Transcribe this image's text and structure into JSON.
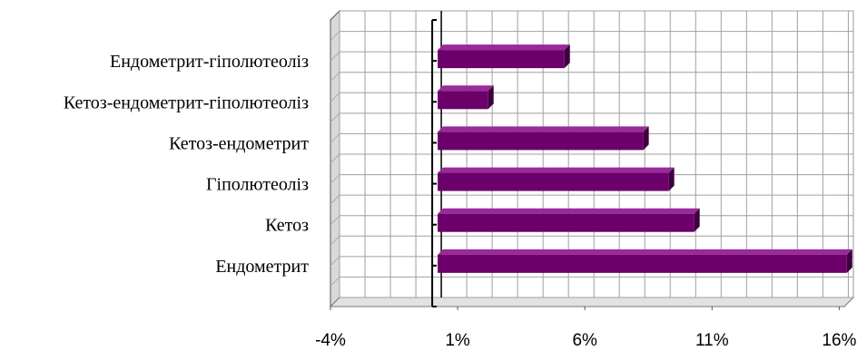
{
  "chart_data": {
    "type": "bar",
    "orientation": "horizontal",
    "style": "3d",
    "categories": [
      "Ендометрит-гіполютеоліз",
      "Кетоз-ендометрит-гіполютеоліз",
      "Кетоз-ендометрит",
      "Гіполютеоліз",
      "Кетоз",
      "Ендометрит"
    ],
    "values": [
      5.2,
      2.2,
      8.3,
      9.3,
      10.3,
      16.3
    ],
    "x_ticks": [
      -4,
      1,
      6,
      11,
      16
    ],
    "x_tick_labels": [
      "-4%",
      "1%",
      "6%",
      "11%",
      "16%"
    ],
    "xlim": [
      -4,
      16.2
    ],
    "grid": true,
    "bar_color": "#6b006b",
    "bar_top_color": "#9a2a9a",
    "title": "",
    "xlabel": "",
    "ylabel": ""
  }
}
